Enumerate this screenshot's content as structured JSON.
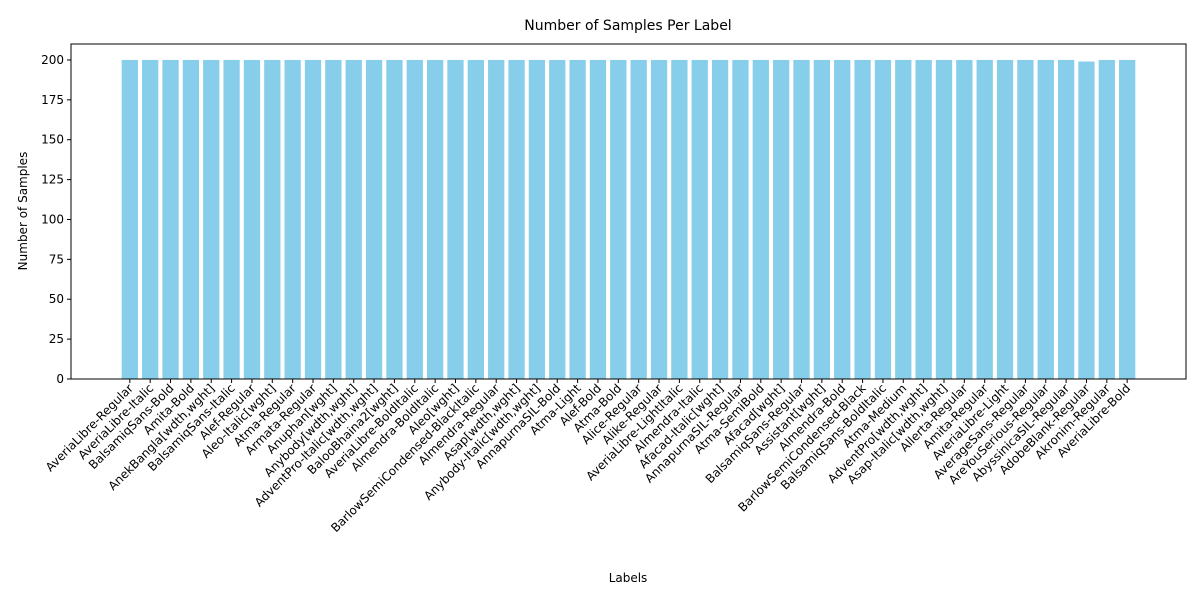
{
  "chart_data": {
    "type": "bar",
    "title": "Number of Samples Per Label",
    "xlabel": "Labels",
    "ylabel": "Number of Samples",
    "ylim": [
      0,
      210
    ],
    "yticks": [
      0,
      25,
      50,
      75,
      100,
      125,
      150,
      175,
      200
    ],
    "grid": false,
    "bar_color": "#87ceeb",
    "categories": [
      "AveriaLibre-Regular",
      "AveriaLibre-Italic",
      "BalsamiqSans-Bold",
      "Amita-Bold",
      "AnekBangla[wdth,wght]",
      "BalsamiqSans-Italic",
      "Alef-Regular",
      "Aleo-Italic[wght]",
      "Atma-Regular",
      "Armata-Regular",
      "Anuphan[wght]",
      "Anybody[wdth,wght]",
      "AdventPro-Italic[wdth,wght]",
      "BalooBhaina2[wght]",
      "AveriaLibre-BoldItalic",
      "Almendra-BoldItalic",
      "Aleo[wght]",
      "BarlowSemiCondensed-BlackItalic",
      "Almendra-Regular",
      "Asap[wdth,wght]",
      "Anybody-Italic[wdth,wght]",
      "AnnapurnaSIL-Bold",
      "Atma-Light",
      "Alef-Bold",
      "Atma-Bold",
      "Alice-Regular",
      "Alike-Regular",
      "AveriaLibre-LightItalic",
      "Almendra-Italic",
      "Afacad-Italic[wght]",
      "AnnapurnaSIL-Regular",
      "Atma-SemiBold",
      "Afacad[wght]",
      "BalsamiqSans-Regular",
      "Assistant[wght]",
      "Almendra-Bold",
      "BarlowSemiCondensed-Black",
      "BalsamiqSans-BoldItalic",
      "Atma-Medium",
      "AdventPro[wdth,wght]",
      "Asap-Italic[wdth,wght]",
      "Allerta-Regular",
      "Amita-Regular",
      "AveriaLibre-Light",
      "AverageSans-Regular",
      "AreYouSerious-Regular",
      "AbyssinicaSIL-Regular",
      "AdobeBlank-Regular",
      "Akronim-Regular",
      "AveriaLibre-Bold"
    ],
    "values": [
      200,
      200,
      200,
      200,
      200,
      200,
      200,
      200,
      200,
      200,
      200,
      200,
      200,
      200,
      200,
      200,
      200,
      200,
      200,
      200,
      200,
      200,
      200,
      200,
      200,
      200,
      200,
      200,
      200,
      200,
      200,
      200,
      200,
      200,
      200,
      200,
      200,
      200,
      200,
      200,
      200,
      200,
      200,
      200,
      200,
      200,
      200,
      199,
      200,
      200
    ]
  }
}
